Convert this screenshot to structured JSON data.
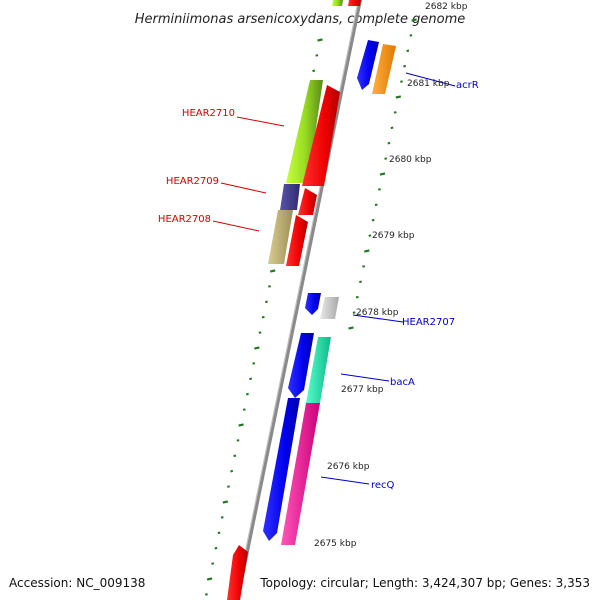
{
  "title": "Herminiimonas arsenicoxydans, complete genome",
  "accession": "Accession: NC_009138",
  "summary": "Topology: circular; Length: 3,424,307 bp; Genes: 3,353",
  "kbp_labels": [
    {
      "text": "2682 kbp"
    },
    {
      "text": "2681 kbp"
    },
    {
      "text": "2680 kbp"
    },
    {
      "text": "2679 kbp"
    },
    {
      "text": "2678 kbp"
    },
    {
      "text": "2677 kbp"
    },
    {
      "text": "2676 kbp"
    },
    {
      "text": "2675 kbp"
    }
  ],
  "gene_labels": [
    {
      "text": "acrR",
      "color": "#0000cc"
    },
    {
      "text": "HEAR2710",
      "color": "#dd0000"
    },
    {
      "text": "HEAR2709",
      "color": "#dd0000"
    },
    {
      "text": "HEAR2708",
      "color": "#dd0000"
    },
    {
      "text": "HEAR2707",
      "color": "#0000cc"
    },
    {
      "text": "bacA",
      "color": "#0000cc"
    },
    {
      "text": "recQ",
      "color": "#0000cc"
    }
  ],
  "colors": {
    "backbone": "#8a8a8a",
    "ticks": "#1f7a1f",
    "forward_label": "#0000cc",
    "reverse_label": "#dd0000"
  }
}
